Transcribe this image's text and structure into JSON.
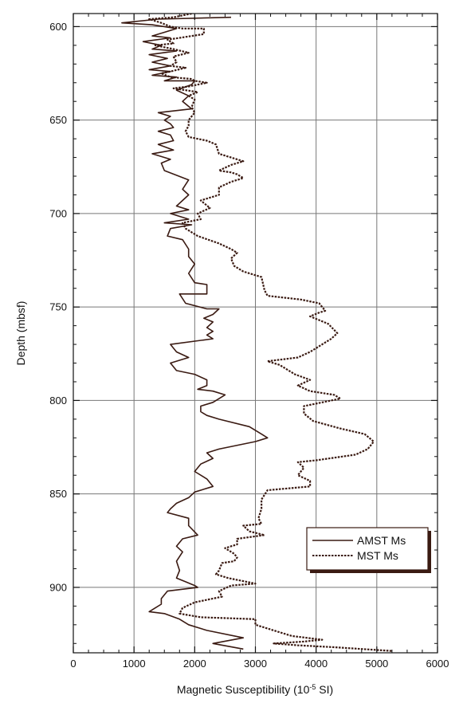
{
  "chart_data": {
    "type": "line",
    "orientation": "vertical-depth",
    "xlabel_main": "Magnetic Susceptibility (10",
    "xlabel_exp": "-5",
    "xlabel_unit": " SI)",
    "ylabel": "Depth (mbsf)",
    "xlim": [
      0,
      6000
    ],
    "ylim": [
      935,
      593
    ],
    "x_ticks": [
      0,
      1000,
      2000,
      3000,
      4000,
      5000,
      6000
    ],
    "x_tick_labels": [
      "0",
      "1000",
      "2000",
      "3000",
      "4000",
      "5000",
      "6000"
    ],
    "y_ticks": [
      600,
      650,
      700,
      750,
      800,
      850,
      900
    ],
    "y_tick_labels": [
      "600",
      "650",
      "700",
      "750",
      "800",
      "850",
      "900"
    ],
    "grid": true,
    "legend_position": "right",
    "series": [
      {
        "name": "AMST Ms",
        "style": "solid",
        "color": "#3a1a12",
        "points": [
          [
            2600,
            595
          ],
          [
            1400,
            596
          ],
          [
            800,
            598
          ],
          [
            1300,
            599
          ],
          [
            1700,
            601
          ],
          [
            1500,
            603
          ],
          [
            1300,
            605
          ],
          [
            1600,
            606
          ],
          [
            1150,
            608
          ],
          [
            1450,
            610
          ],
          [
            1300,
            612
          ],
          [
            1700,
            613
          ],
          [
            1250,
            615
          ],
          [
            1550,
            617
          ],
          [
            1300,
            619
          ],
          [
            1600,
            621
          ],
          [
            1250,
            623
          ],
          [
            1600,
            624
          ],
          [
            1300,
            626
          ],
          [
            1700,
            627
          ],
          [
            1500,
            629
          ],
          [
            2000,
            629
          ],
          [
            1950,
            631
          ],
          [
            1700,
            634
          ],
          [
            1900,
            637
          ],
          [
            1800,
            640
          ],
          [
            1950,
            644
          ],
          [
            1400,
            646
          ],
          [
            1600,
            648
          ],
          [
            1500,
            650
          ],
          [
            1600,
            652
          ],
          [
            1650,
            654
          ],
          [
            1400,
            656
          ],
          [
            1600,
            658
          ],
          [
            1650,
            661
          ],
          [
            1400,
            663
          ],
          [
            1650,
            666
          ],
          [
            1300,
            668
          ],
          [
            1600,
            671
          ],
          [
            1450,
            673
          ],
          [
            1500,
            677
          ],
          [
            1900,
            682
          ],
          [
            1800,
            687
          ],
          [
            1900,
            690
          ],
          [
            1800,
            693
          ],
          [
            1700,
            696
          ],
          [
            1900,
            698
          ],
          [
            1600,
            700
          ],
          [
            1900,
            703
          ],
          [
            1500,
            705
          ],
          [
            1950,
            706
          ],
          [
            1600,
            708
          ],
          [
            1550,
            712
          ],
          [
            1800,
            714
          ],
          [
            1900,
            719
          ],
          [
            1900,
            723
          ],
          [
            2000,
            727
          ],
          [
            1900,
            732
          ],
          [
            2000,
            737
          ],
          [
            2200,
            738
          ],
          [
            2200,
            743
          ],
          [
            1750,
            743
          ],
          [
            1850,
            748
          ],
          [
            2200,
            751
          ],
          [
            2400,
            751
          ],
          [
            2300,
            754
          ],
          [
            2150,
            756
          ],
          [
            2300,
            758
          ],
          [
            2200,
            761
          ],
          [
            2300,
            763
          ],
          [
            2200,
            765
          ],
          [
            2300,
            767
          ],
          [
            1600,
            770
          ],
          [
            1700,
            774
          ],
          [
            1900,
            777
          ],
          [
            1600,
            780
          ],
          [
            1700,
            784
          ],
          [
            2000,
            786
          ],
          [
            2200,
            789
          ],
          [
            2200,
            792
          ],
          [
            2050,
            794
          ],
          [
            2300,
            795
          ],
          [
            2500,
            797
          ],
          [
            2300,
            801
          ],
          [
            2100,
            803
          ],
          [
            2100,
            806
          ],
          [
            2200,
            808
          ],
          [
            2400,
            810
          ],
          [
            2900,
            814
          ],
          [
            3100,
            818
          ],
          [
            3200,
            820
          ],
          [
            3000,
            822
          ],
          [
            2400,
            826
          ],
          [
            2200,
            828
          ],
          [
            2300,
            831
          ],
          [
            2100,
            834
          ],
          [
            2000,
            838
          ],
          [
            2200,
            842
          ],
          [
            2300,
            846
          ],
          [
            2000,
            849
          ],
          [
            1900,
            852
          ],
          [
            1700,
            855
          ],
          [
            1600,
            858
          ],
          [
            1550,
            860
          ],
          [
            1900,
            863
          ],
          [
            1900,
            867
          ],
          [
            2050,
            872
          ],
          [
            1800,
            874
          ],
          [
            1700,
            878
          ],
          [
            1800,
            881
          ],
          [
            1700,
            886
          ],
          [
            1750,
            891
          ],
          [
            1700,
            895
          ],
          [
            1850,
            897
          ],
          [
            2000,
            899
          ],
          [
            2050,
            900
          ],
          [
            1550,
            902
          ],
          [
            1450,
            906
          ],
          [
            1450,
            909
          ],
          [
            1250,
            913
          ],
          [
            1500,
            914
          ],
          [
            1750,
            917
          ],
          [
            1900,
            920
          ],
          [
            2200,
            923
          ],
          [
            2800,
            927
          ],
          [
            2300,
            930
          ],
          [
            2800,
            933
          ]
        ]
      },
      {
        "name": "MST Ms",
        "style": "dashed",
        "color": "#3a1a12",
        "points": [
          [
            1950,
            593
          ],
          [
            1650,
            595
          ],
          [
            1250,
            596
          ],
          [
            1450,
            598
          ],
          [
            1600,
            600
          ],
          [
            1800,
            601
          ],
          [
            2150,
            601
          ],
          [
            2150,
            604
          ],
          [
            1750,
            606
          ],
          [
            1550,
            607
          ],
          [
            1650,
            609
          ],
          [
            1350,
            610
          ],
          [
            1650,
            612
          ],
          [
            1900,
            614
          ],
          [
            1650,
            616
          ],
          [
            1700,
            619
          ],
          [
            1600,
            621
          ],
          [
            1850,
            622
          ],
          [
            1600,
            624
          ],
          [
            1450,
            625
          ],
          [
            1600,
            627
          ],
          [
            1950,
            628
          ],
          [
            2000,
            629
          ],
          [
            2200,
            630
          ],
          [
            1900,
            632
          ],
          [
            1650,
            633
          ],
          [
            2050,
            635
          ],
          [
            1900,
            637
          ],
          [
            2000,
            639
          ],
          [
            1950,
            643
          ],
          [
            2000,
            646
          ],
          [
            1900,
            650
          ],
          [
            1900,
            653
          ],
          [
            1850,
            656
          ],
          [
            1900,
            659
          ],
          [
            2200,
            661
          ],
          [
            2350,
            663
          ],
          [
            2400,
            668
          ],
          [
            2600,
            670
          ],
          [
            2800,
            672
          ],
          [
            2600,
            674
          ],
          [
            2400,
            677
          ],
          [
            2600,
            678
          ],
          [
            2700,
            679
          ],
          [
            2800,
            681
          ],
          [
            2600,
            683
          ],
          [
            2400,
            686
          ],
          [
            2400,
            690
          ],
          [
            2100,
            693
          ],
          [
            2250,
            697
          ],
          [
            2050,
            700
          ],
          [
            2100,
            703
          ],
          [
            1800,
            705
          ],
          [
            1850,
            708
          ],
          [
            2050,
            712
          ],
          [
            2400,
            716
          ],
          [
            2600,
            719
          ],
          [
            2700,
            721
          ],
          [
            2600,
            724
          ],
          [
            2650,
            728
          ],
          [
            2800,
            731
          ],
          [
            3100,
            734
          ],
          [
            3150,
            741
          ],
          [
            3200,
            744
          ],
          [
            3750,
            746
          ],
          [
            4050,
            748
          ],
          [
            4150,
            752
          ],
          [
            4050,
            753
          ],
          [
            3900,
            755
          ],
          [
            4200,
            759
          ],
          [
            4350,
            764
          ],
          [
            4250,
            767
          ],
          [
            4050,
            771
          ],
          [
            3900,
            774
          ],
          [
            3700,
            777
          ],
          [
            3200,
            779
          ],
          [
            3400,
            781
          ],
          [
            3650,
            786
          ],
          [
            3900,
            789
          ],
          [
            3700,
            792
          ],
          [
            3900,
            795
          ],
          [
            4300,
            797
          ],
          [
            4400,
            799
          ],
          [
            4100,
            801
          ],
          [
            3800,
            803
          ],
          [
            3800,
            807
          ],
          [
            3950,
            811
          ],
          [
            4400,
            815
          ],
          [
            4800,
            818
          ],
          [
            4950,
            822
          ],
          [
            4850,
            826
          ],
          [
            4650,
            829
          ],
          [
            4000,
            832
          ],
          [
            3700,
            833
          ],
          [
            3800,
            836
          ],
          [
            3700,
            840
          ],
          [
            3900,
            843
          ],
          [
            3900,
            846
          ],
          [
            3200,
            848
          ],
          [
            3100,
            853
          ],
          [
            3100,
            858
          ],
          [
            3050,
            863
          ],
          [
            3100,
            866
          ],
          [
            2800,
            867
          ],
          [
            2900,
            870
          ],
          [
            3150,
            872
          ],
          [
            2700,
            874
          ],
          [
            2700,
            877
          ],
          [
            2500,
            879
          ],
          [
            2650,
            882
          ],
          [
            2700,
            884
          ],
          [
            2650,
            886
          ],
          [
            2450,
            887
          ],
          [
            2400,
            891
          ],
          [
            2350,
            893
          ],
          [
            2550,
            895
          ],
          [
            3000,
            898
          ],
          [
            2600,
            899
          ],
          [
            2400,
            902
          ],
          [
            2450,
            905
          ],
          [
            2000,
            908
          ],
          [
            1800,
            911
          ],
          [
            1750,
            914
          ],
          [
            2100,
            916
          ],
          [
            3000,
            917
          ],
          [
            3000,
            920
          ],
          [
            3300,
            923
          ],
          [
            3600,
            926
          ],
          [
            4100,
            928
          ],
          [
            3800,
            929
          ],
          [
            3300,
            930
          ],
          [
            3700,
            931
          ],
          [
            4300,
            932
          ],
          [
            5250,
            934
          ]
        ]
      }
    ]
  }
}
